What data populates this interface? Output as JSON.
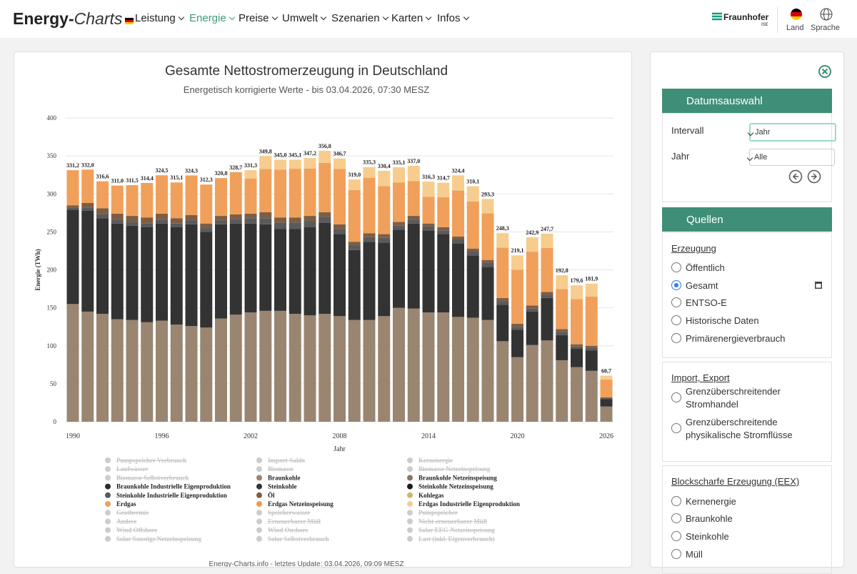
{
  "header": {
    "brand_1": "Energy-",
    "brand_2": "Charts",
    "nav": [
      {
        "label": "Leistung"
      },
      {
        "label": "Energie",
        "active": true
      },
      {
        "label": "Preise"
      },
      {
        "label": "Umwelt"
      },
      {
        "label": "Szenarien"
      },
      {
        "label": "Karten"
      },
      {
        "label": "Infos"
      }
    ],
    "org": "Fraunhofer",
    "org_sub": "ISE",
    "land": "Land",
    "sprache": "Sprache"
  },
  "chart_data": {
    "type": "bar",
    "stacked": true,
    "title": "Gesamte Nettostromerzeugung in Deutschland",
    "subtitle": "Energetisch korrigierte Werte - bis 03.04.2026, 07:30 MESZ",
    "x_label": "Jahr",
    "y_label": "Energie (TWh)",
    "categories": [
      "1990",
      null,
      null,
      null,
      null,
      null,
      "1996",
      null,
      null,
      null,
      null,
      null,
      "2002",
      null,
      null,
      null,
      null,
      null,
      "2008",
      null,
      null,
      null,
      null,
      null,
      "2014",
      null,
      null,
      null,
      null,
      null,
      "2020",
      null,
      null,
      null,
      null,
      null,
      "2026"
    ],
    "ylim": [
      0,
      400
    ],
    "yticks": [
      0,
      50,
      100,
      150,
      200,
      250,
      300,
      350,
      400
    ],
    "grid": true,
    "series": [
      {
        "name": "Pumpspeicher Verbrauch",
        "color": "#cccccc",
        "hidden": true
      },
      {
        "name": "Import-Saldo",
        "color": "#cccccc",
        "hidden": true
      },
      {
        "name": "Kernenergie",
        "color": "#cccccc",
        "hidden": true
      },
      {
        "name": "Laufwasser",
        "color": "#cccccc",
        "hidden": true
      },
      {
        "name": "Biomasse",
        "color": "#cccccc",
        "hidden": true
      },
      {
        "name": "Biomasse Netzeinspeisung",
        "color": "#cccccc",
        "hidden": true
      },
      {
        "name": "Biomasse Selbstverbrauch",
        "color": "#cccccc",
        "hidden": true
      },
      {
        "name": "Braunkohle",
        "color": "#9a8571",
        "values": [
          155,
          145,
          142,
          135,
          134,
          131,
          133,
          128,
          126,
          124,
          136,
          141,
          144,
          146,
          146,
          142,
          140,
          142,
          139,
          134,
          134,
          139,
          150,
          149,
          144,
          144,
          138,
          137,
          134,
          106,
          85,
          101,
          107,
          81,
          72,
          67,
          20
        ]
      },
      {
        "name": "Braunkohle Netzeinspeisung",
        "color": "#8b7560"
      },
      {
        "name": "Braunkohle Industrielle Eigenproduktion",
        "color": "#2b2b2b"
      },
      {
        "name": "Steinkohle",
        "color": "#333333",
        "values": [
          124,
          133,
          126,
          126,
          124,
          125,
          128,
          128,
          134,
          126,
          124,
          120,
          117,
          114,
          108,
          112,
          116,
          120,
          108,
          92,
          103,
          97,
          103,
          112,
          108,
          103,
          97,
          82,
          70,
          48,
          36,
          44,
          56,
          33,
          24,
          27,
          10
        ]
      },
      {
        "name": "Steinkohle Netzeinspeisung",
        "color": "#1a1a1a"
      },
      {
        "name": "Steinkohle Industrielle Eigenproduktion",
        "color": "#5a5a5a",
        "values": [
          3,
          4,
          5,
          5,
          5,
          5,
          5,
          5,
          5,
          5,
          5,
          6,
          7,
          8,
          8,
          8,
          8,
          8,
          7,
          6,
          6,
          6,
          5,
          5,
          5,
          5,
          5,
          5,
          5,
          5,
          4,
          4,
          4,
          4,
          3,
          3,
          1
        ]
      },
      {
        "name": "Öl",
        "color": "#7d5e45",
        "values": [
          3,
          6,
          8,
          8,
          8,
          8,
          8,
          7,
          7,
          6,
          6,
          6,
          6,
          8,
          7,
          7,
          7,
          6,
          6,
          5,
          5,
          5,
          5,
          5,
          4,
          4,
          4,
          4,
          4,
          4,
          4,
          4,
          4,
          4,
          3,
          3,
          1
        ]
      },
      {
        "name": "Kohlegas",
        "color": "#d2b46a"
      },
      {
        "name": "Erdgas",
        "color": "#f0a05a",
        "values": [
          46.2,
          44,
          35.6,
          37,
          40.5,
          45.4,
          50.5,
          47.1,
          52.3,
          51.3,
          49.8,
          55.7,
          46.3,
          56.8,
          63,
          64.1,
          62.2,
          64.8,
          72.7,
          68,
          73.3,
          63.4,
          52.1,
          46,
          35.3,
          39.7,
          60.4,
          62.1,
          61.3,
          66.3,
          71.1,
          70.9,
          57.7,
          52.8,
          59.6,
          64.9,
          23.7
        ]
      },
      {
        "name": "Erdgas Netzeinspeisung",
        "color": "#ee9a55"
      },
      {
        "name": "Erdgas Industrielle Eigenproduktion",
        "color": "#f6cd8e",
        "values": [
          0,
          0,
          0,
          0,
          0,
          0,
          0,
          0,
          0,
          0,
          0,
          0,
          11,
          17,
          13,
          12,
          14,
          16,
          14,
          14,
          14,
          20,
          20,
          20,
          20,
          19,
          20,
          20,
          19,
          19,
          19,
          19,
          19,
          18,
          18,
          17,
          5
        ]
      },
      {
        "name": "Geothermie",
        "color": "#cccccc",
        "hidden": true
      },
      {
        "name": "Speicherwasser",
        "color": "#cccccc",
        "hidden": true
      },
      {
        "name": "Pumpspeicher",
        "color": "#cccccc",
        "hidden": true
      },
      {
        "name": "Andere",
        "color": "#cccccc",
        "hidden": true
      },
      {
        "name": "Erneuerbarer Müll",
        "color": "#cccccc",
        "hidden": true
      },
      {
        "name": "Nicht-erneuerbarer Müll",
        "color": "#cccccc",
        "hidden": true
      },
      {
        "name": "Wind Offshore",
        "color": "#cccccc",
        "hidden": true
      },
      {
        "name": "Wind Onshore",
        "color": "#cccccc",
        "hidden": true
      },
      {
        "name": "Solar EEG-Netzeinspeisung",
        "color": "#cccccc",
        "hidden": true
      },
      {
        "name": "Solar Sonstige Netzeinspeisung",
        "color": "#cccccc",
        "hidden": true
      },
      {
        "name": "Solar Selbstverbrauch",
        "color": "#cccccc",
        "hidden": true
      },
      {
        "name": "Last (inkl. Eigenverbrauch)",
        "color": "#cccccc",
        "hidden": true
      }
    ],
    "totals": {
      "values": [
        331.2,
        332.0,
        316.6,
        311.0,
        311.5,
        314.4,
        324.5,
        315.1,
        324.3,
        312.3,
        320.8,
        328.7,
        331.3,
        349.8,
        345.0,
        345.1,
        347.2,
        356.8,
        346.7,
        319.0,
        335.3,
        330.4,
        335.1,
        337.0,
        316.3,
        314.7,
        324.4,
        310.1,
        293.3,
        248.3,
        219.1,
        242.9,
        247.7,
        192.8,
        179.6,
        181.9,
        60.7
      ],
      "value_labels": [
        "331,2",
        "332,0",
        "316,6",
        "311,0",
        "311,5",
        "314,4",
        "324,5",
        "315,1",
        "324,3",
        "312,3",
        "320,8",
        "328,7",
        "331,3",
        "349,8",
        "345,0",
        "345,1",
        "347,2",
        "356,8",
        "346,7",
        "319,0",
        "335,3",
        "330,4",
        "335,1",
        "337,0",
        "316,3",
        "314,7",
        "324,4",
        "310,1",
        "293,3",
        "248,3",
        "219,1",
        "242,9",
        "247,7",
        "192,8",
        "179,6",
        "181,9",
        "60,7"
      ]
    }
  },
  "footer": "Energy-Charts.info - letztes Update: 03.04.2026, 09:09 MESZ",
  "sidebar": {
    "datum": {
      "title": "Datumsauswahl",
      "fields": [
        {
          "label": "Intervall",
          "value": "Jahr"
        },
        {
          "label": "Jahr",
          "value": "Alle"
        }
      ]
    },
    "quellen": {
      "title": "Quellen",
      "groups": [
        {
          "title": "Erzeugung",
          "options": [
            "Öffentlich",
            "Gesamt",
            "ENTSO-E",
            "Historische Daten",
            "Primärenergieverbrauch"
          ],
          "selected": 1
        },
        {
          "title": "Import, Export",
          "options": [
            "Grenzüberschreitender Stromhandel",
            "Grenzüberschreitende physikalische Stromflüsse"
          ]
        },
        {
          "title": "Blockscharfe Erzeugung (EEX)",
          "options": [
            "Kernenergie",
            "Braunkohle",
            "Steinkohle",
            "Müll"
          ]
        }
      ]
    }
  }
}
